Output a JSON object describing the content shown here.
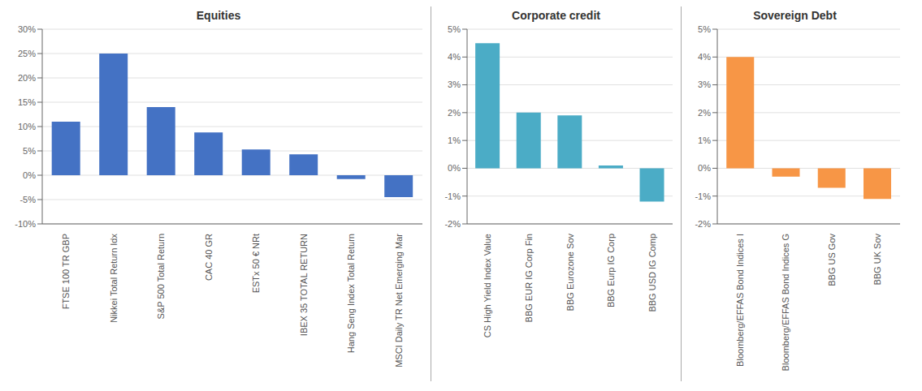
{
  "chart_data": [
    {
      "type": "bar",
      "title": "Equities",
      "categories": [
        "FTSE 100 TR GBP",
        "Nikkei Total Return Idx",
        "S&P 500 Total Return",
        "CAC 40 GR",
        "ESTx 50 € NRt",
        "IBEX 35 TOTAL RETURN",
        "Hang Seng Index Total Return",
        "MSCI Daily TR Net Emerging Mar"
      ],
      "values": [
        0.11,
        0.25,
        0.14,
        0.088,
        0.053,
        0.043,
        -0.008,
        -0.045
      ],
      "color": "#4472C4",
      "ylim": [
        -0.1,
        0.3
      ],
      "yticks": [
        {
          "value": -0.1,
          "label": "-10%"
        },
        {
          "value": -0.05,
          "label": "-5%"
        },
        {
          "value": 0.0,
          "label": "0%"
        },
        {
          "value": 0.05,
          "label": "5%"
        },
        {
          "value": 0.1,
          "label": "10%"
        },
        {
          "value": 0.15,
          "label": "15%"
        },
        {
          "value": 0.2,
          "label": "20%"
        },
        {
          "value": 0.25,
          "label": "25%"
        },
        {
          "value": 0.3,
          "label": "30%"
        }
      ],
      "grid": true
    },
    {
      "type": "bar",
      "title": "Corporate credit",
      "categories": [
        "CS High Yield Index Value",
        "BBG EUR IG Corp Fin",
        "BBG Eurozone Sov",
        "BBG Eurp IG Corp",
        "BBG USD IG Comp"
      ],
      "values": [
        0.045,
        0.02,
        0.019,
        0.001,
        -0.012
      ],
      "color": "#4BACC6",
      "ylim": [
        -0.02,
        0.05
      ],
      "yticks": [
        {
          "value": -0.02,
          "label": "-2%"
        },
        {
          "value": -0.01,
          "label": "-1%"
        },
        {
          "value": 0.0,
          "label": "0%"
        },
        {
          "value": 0.01,
          "label": "1%"
        },
        {
          "value": 0.02,
          "label": "2%"
        },
        {
          "value": 0.03,
          "label": "3%"
        },
        {
          "value": 0.04,
          "label": "4%"
        },
        {
          "value": 0.05,
          "label": "5%"
        }
      ],
      "grid": true
    },
    {
      "type": "bar",
      "title": "Sovereign Debt",
      "categories": [
        "Bloomberg/EFFAS Bond Indices I",
        "Bloomberg/EFFAS Bond Indices G",
        "BBG US Gov",
        "BBG UK Sov"
      ],
      "values": [
        0.04,
        -0.003,
        -0.007,
        -0.011
      ],
      "color": "#F79646",
      "ylim": [
        -0.02,
        0.05
      ],
      "yticks": [
        {
          "value": -0.02,
          "label": "-2%"
        },
        {
          "value": -0.01,
          "label": "-1%"
        },
        {
          "value": 0.0,
          "label": "0%"
        },
        {
          "value": 0.01,
          "label": "1%"
        },
        {
          "value": 0.02,
          "label": "2%"
        },
        {
          "value": 0.03,
          "label": "3%"
        },
        {
          "value": 0.04,
          "label": "4%"
        },
        {
          "value": 0.05,
          "label": "5%"
        }
      ],
      "grid": true
    }
  ]
}
